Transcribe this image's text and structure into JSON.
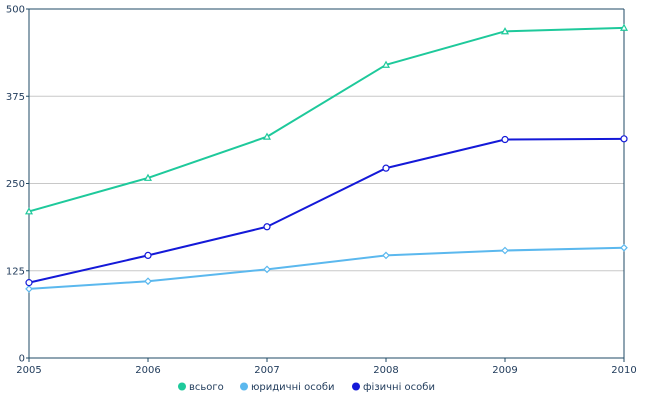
{
  "chart_data": {
    "type": "line",
    "title": "",
    "xlabel": "",
    "ylabel": "",
    "x": [
      "2005",
      "2006",
      "2007",
      "2008",
      "2009",
      "2010"
    ],
    "ylim": [
      0,
      500
    ],
    "y_ticks": [
      0,
      125,
      250,
      375,
      500
    ],
    "grid": true,
    "legend_position": "bottom",
    "series": [
      {
        "name": "всього",
        "color": "#1ec99b",
        "marker": "triangle",
        "values": [
          210,
          258,
          317,
          420,
          468,
          473
        ]
      },
      {
        "name": "юридичні особи",
        "color": "#5bb8ee",
        "marker": "diamond",
        "values": [
          99,
          110,
          127,
          147,
          154,
          158
        ]
      },
      {
        "name": "фізичні особи",
        "color": "#1419d8",
        "marker": "circle",
        "values": [
          108,
          147,
          188,
          272,
          313,
          314
        ]
      }
    ]
  }
}
